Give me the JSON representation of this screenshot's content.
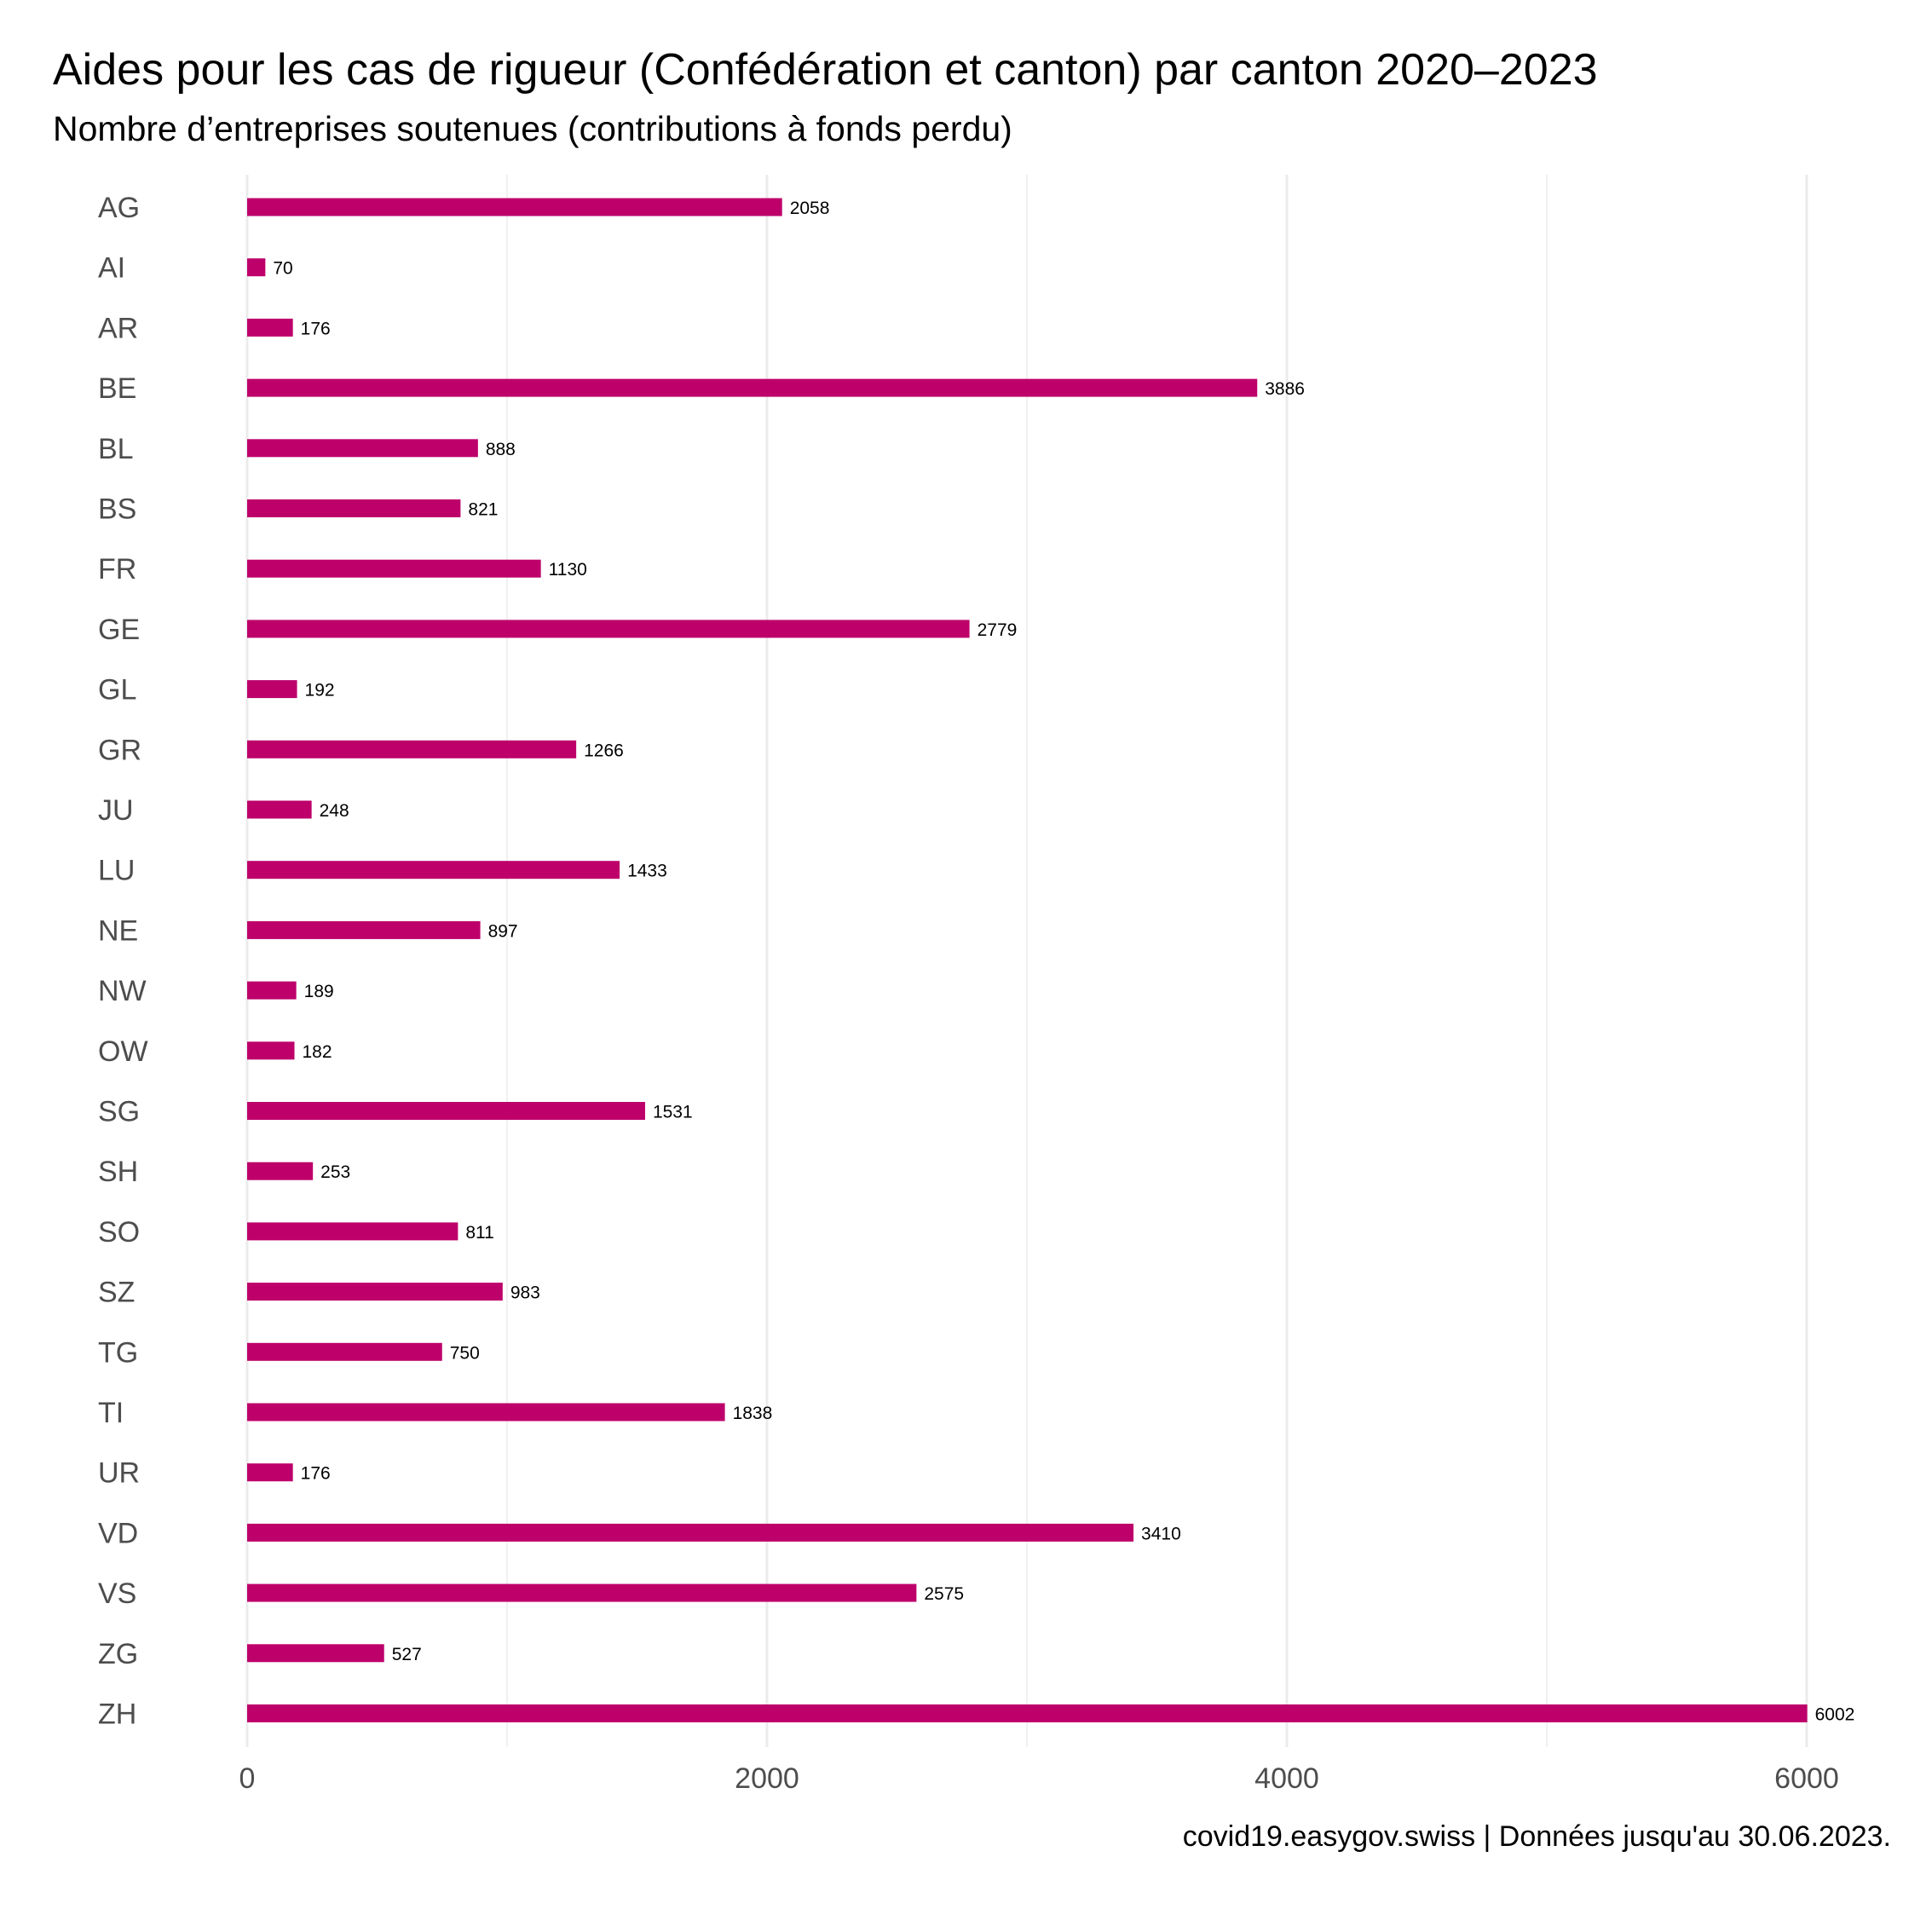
{
  "title": "Aides pour les cas de rigueur (Confédération et canton) par canton 2020–2023",
  "subtitle": "Nombre d’entreprises soutenues (contributions à fonds perdu)",
  "caption": "covid19.easygov.swiss | Données jusqu'au 30.06.2023.",
  "bar_color": "#BE006B",
  "grid_color": "#EBEBEB",
  "chart_data": {
    "type": "bar",
    "orientation": "horizontal",
    "title": "Aides pour les cas de rigueur (Confédération et canton) par canton 2020–2023",
    "subtitle": "Nombre d’entreprises soutenues (contributions à fonds perdu)",
    "xlabel": "",
    "ylabel": "",
    "categories": [
      "AG",
      "AI",
      "AR",
      "BE",
      "BL",
      "BS",
      "FR",
      "GE",
      "GL",
      "GR",
      "JU",
      "LU",
      "NE",
      "NW",
      "OW",
      "SG",
      "SH",
      "SO",
      "SZ",
      "TG",
      "TI",
      "UR",
      "VD",
      "VS",
      "ZG",
      "ZH"
    ],
    "values": [
      2058,
      70,
      176,
      3886,
      888,
      821,
      1130,
      2779,
      192,
      1266,
      248,
      1433,
      897,
      189,
      182,
      1531,
      253,
      811,
      983,
      750,
      1838,
      176,
      3410,
      2575,
      527,
      6002
    ],
    "xlim": [
      0,
      6000
    ],
    "xticks": [
      0,
      2000,
      4000,
      6000
    ],
    "grid": "vertical",
    "data_labels": true
  }
}
